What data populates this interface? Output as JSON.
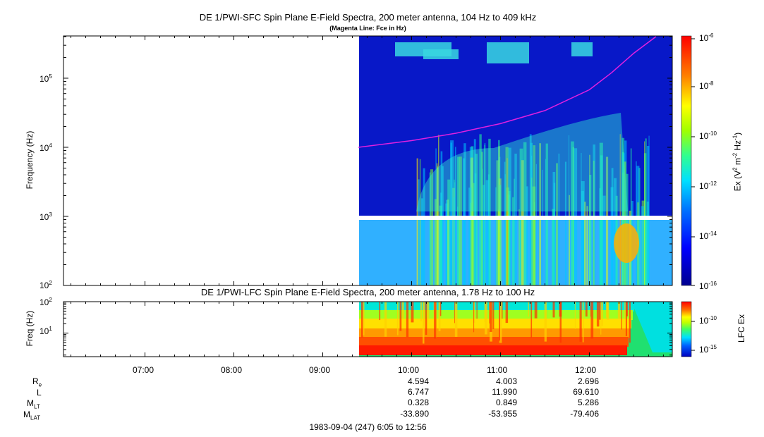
{
  "chart_data": [
    {
      "type": "heatmap",
      "title": "DE 1/PWI-SFC  Spin Plane E-Field Spectra, 200 meter antenna, 104 Hz to 409 kHz",
      "subtitle": "(Magenta Line: Fce in Hz)",
      "ylabel": "Frequency (Hz)",
      "yscale": "log",
      "ylim": [
        100,
        409000
      ],
      "yticks": [
        "10",
        "10",
        "10",
        "10"
      ],
      "ytick_exponents": [
        "2",
        "3",
        "4",
        "5"
      ],
      "data_start_time": "09:24",
      "data_gap_hz": 1000,
      "fce_line": {
        "color": "#e020e0",
        "times": [
          "09:24",
          "10:00",
          "10:30",
          "11:00",
          "11:30",
          "12:00",
          "12:15",
          "12:30",
          "12:45"
        ],
        "hz": [
          10000,
          12500,
          16000,
          22000,
          34000,
          68000,
          120000,
          230000,
          400000
        ]
      },
      "colorbar": {
        "label": "Ex (V",
        "label_full": "Ex (V2 m-2 Hz-1)",
        "scale": "log",
        "range": [
          1e-16,
          1e-06
        ],
        "tick_base": [
          "10",
          "10",
          "10",
          "10",
          "10",
          "10"
        ],
        "tick_exponents": [
          "-6",
          "-8",
          "-10",
          "-12",
          "-14",
          "-16"
        ]
      }
    },
    {
      "type": "heatmap",
      "title": "DE 1/PWI-LFC  Spin Plane E-Field Spectra, 200 meter antenna, 1.78 Hz to 100 Hz",
      "ylabel": "Freq (Hz)",
      "yscale": "log",
      "ylim": [
        1.78,
        100
      ],
      "yticks": [
        "10",
        "10"
      ],
      "ytick_exponents": [
        "2",
        "1"
      ],
      "data_start_time": "09:24",
      "colorbar": {
        "label": "LFC Ex",
        "scale": "log",
        "tick_base": [
          "10",
          "10"
        ],
        "tick_exponents": [
          "-10",
          "-15"
        ]
      }
    }
  ],
  "xaxis": {
    "start": "06:05",
    "end": "12:56",
    "ticks": [
      "07:00",
      "08:00",
      "09:00",
      "10:00",
      "11:00",
      "12:00"
    ]
  },
  "ephemeris": {
    "labels": {
      "re": {
        "main": "R",
        "sub": "e"
      },
      "l": {
        "main": "L",
        "sub": ""
      },
      "mlt": {
        "main": "M",
        "sub": "LT"
      },
      "mlat": {
        "main": "M",
        "sub": "LAT"
      }
    },
    "columns": [
      {
        "re": "4.594",
        "l": "6.747",
        "mlt": "0.328",
        "mlat": "-33.890"
      },
      {
        "re": "4.003",
        "l": "11.990",
        "mlt": "0.849",
        "mlat": "-53.955"
      },
      {
        "re": "2.696",
        "l": "69.610",
        "mlt": "5.286",
        "mlat": "-79.406"
      }
    ]
  },
  "footer": "1983-09-04 (247) 6:05 to 12:56"
}
